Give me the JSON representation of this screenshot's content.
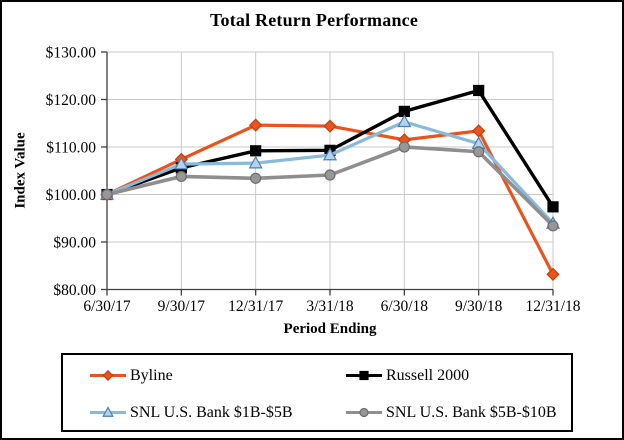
{
  "chart_data": {
    "type": "line",
    "title": "Total Return Performance",
    "xlabel": "Period Ending",
    "ylabel": "Index Value",
    "categories": [
      "6/30/17",
      "9/30/17",
      "12/31/17",
      "3/31/18",
      "6/30/18",
      "9/30/18",
      "12/31/18"
    ],
    "y_tick_labels": [
      "$130.00",
      "$120.00",
      "$110.00",
      "$100.00",
      "$90.00",
      "$80.00"
    ],
    "ylim": [
      80,
      130
    ],
    "y_step": 10,
    "grid": true,
    "grid_color": "#C8C8C8",
    "axis_color": "#3F3F3F",
    "legend": {
      "position": "bottom",
      "columns": 2
    },
    "series": [
      {
        "name": "Byline",
        "marker": "diamond",
        "line_color": "#E9541D",
        "marker_fill": "#E9541D",
        "marker_stroke": "#C0410E",
        "values": [
          100.0,
          107.4,
          114.6,
          114.4,
          111.5,
          113.4,
          83.2
        ]
      },
      {
        "name": "Russell 2000",
        "marker": "square",
        "line_color": "#000000",
        "marker_fill": "#000000",
        "marker_stroke": "#000000",
        "values": [
          100.0,
          105.6,
          109.2,
          109.3,
          117.5,
          121.9,
          97.4
        ]
      },
      {
        "name": "SNL U.S. Bank $1B-$5B",
        "marker": "triangle",
        "line_color": "#8ABADB",
        "marker_fill": "#B4D2E8",
        "marker_stroke": "#4A7EBA",
        "values": [
          100.0,
          106.4,
          106.6,
          108.3,
          115.3,
          110.7,
          93.9
        ]
      },
      {
        "name": "SNL U.S. Bank $5B-$10B",
        "marker": "circle",
        "line_color": "#8E8E8E",
        "marker_fill": "#979797",
        "marker_stroke": "#6E6E6E",
        "values": [
          100.0,
          103.8,
          103.4,
          104.1,
          110.0,
          109.0,
          93.4
        ]
      }
    ]
  }
}
